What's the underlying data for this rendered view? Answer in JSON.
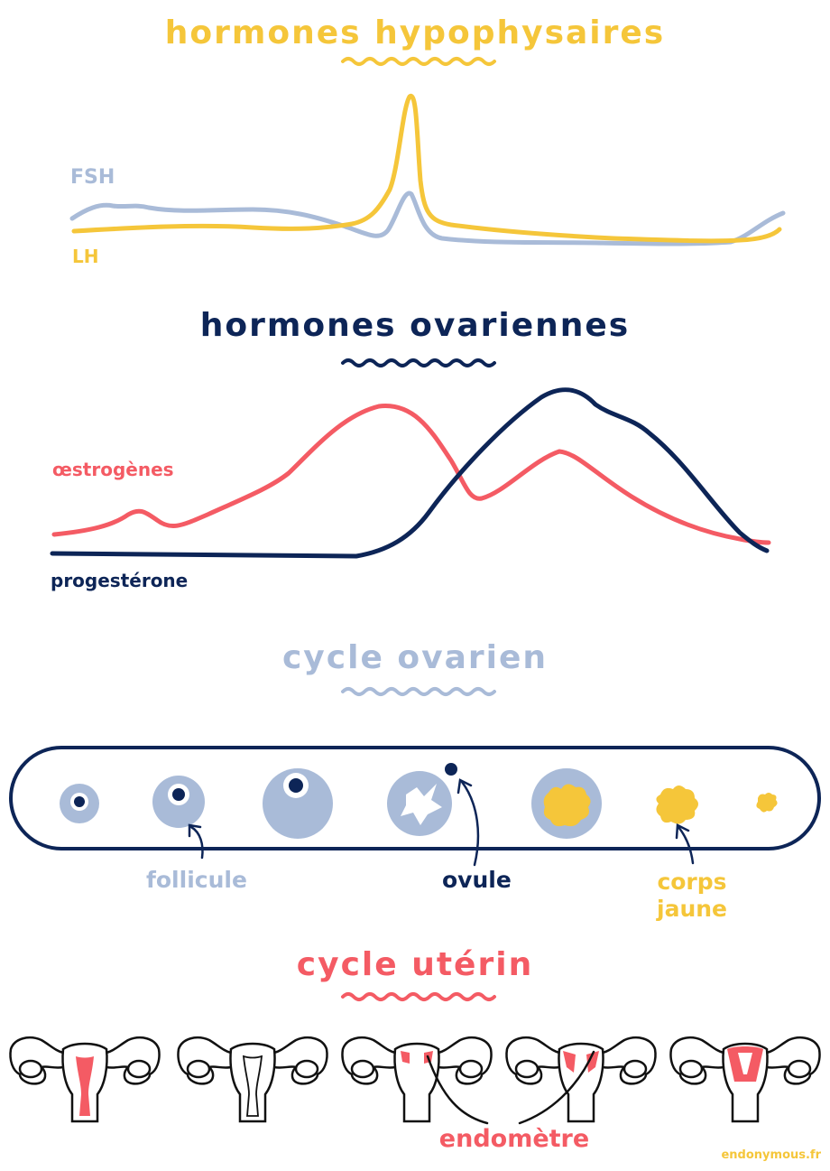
{
  "sections": {
    "pituitary_title": "hormones hypophysaires",
    "ovarian_hormones_title": "hormones ovariennes",
    "ovarian_cycle_title": "cycle ovarien",
    "uterine_cycle_title": "cycle utérin"
  },
  "curves": {
    "fsh_label": "FSH",
    "lh_label": "LH",
    "oestrogen_label": "œstrogènes",
    "progesterone_label": "progestérone"
  },
  "ovarian_cycle": {
    "follicle_label": "follicule",
    "ovum_label": "ovule",
    "corpus_luteum_line1": "corps",
    "corpus_luteum_line2": "jaune"
  },
  "uterine_cycle": {
    "endometrium_label": "endomètre"
  },
  "credit": "endonymous.fr",
  "colors": {
    "yellow": "#f5c63a",
    "navy": "#0d2557",
    "light_blue": "#a9bbd8",
    "coral": "#f45b64"
  }
}
